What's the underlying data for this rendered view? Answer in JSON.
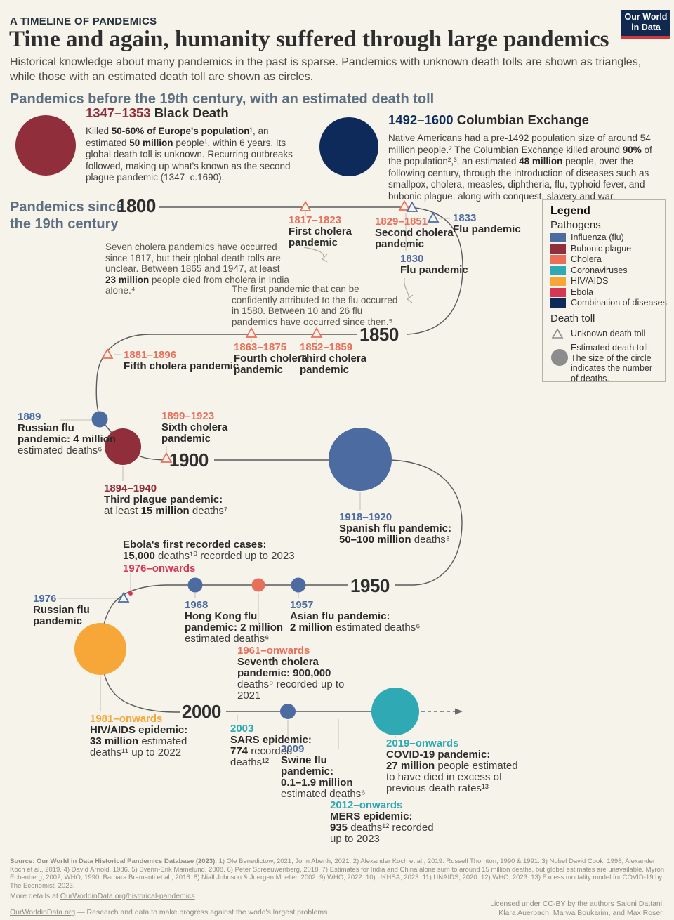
{
  "colors": {
    "flu": "#4c6ba0",
    "bubonic": "#912e3c",
    "cholera": "#e8705a",
    "corona": "#2fa9b4",
    "hiv": "#f7a738",
    "ebola": "#d73753",
    "combo": "#0e2a5a",
    "gray": "#8c8c8c",
    "line": "#5b5b5b",
    "connector": "#c6c2b7",
    "leader": "#b3aea2",
    "dash": "#6b6b6b",
    "heading": "#5d7082",
    "logo_navy": "#12294f",
    "logo_red": "#d0383b",
    "bg": "#f6f3eb"
  },
  "header": {
    "eyebrow": "A TIMELINE OF PANDEMICS",
    "title": "Time and again, humanity suffered through large pandemics",
    "subtitle": "Historical knowledge about many pandemics in the past is sparse. Pandemics with unknown death tolls are shown as triangles, while those with an estimated death toll are shown as circles."
  },
  "logo": {
    "l1": "Our World",
    "l2": "in Data"
  },
  "sections": {
    "pre19": "Pandemics before the 19th century, with an estimated death toll",
    "since19_l1": "Pandemics since",
    "since19_l2": "the 19th century"
  },
  "decades": {
    "d1800": "1800",
    "d1850": "1850",
    "d1900": "1900",
    "d1950": "1950",
    "d2000": "2000"
  },
  "pre": {
    "bd": {
      "date": "1347–1353",
      "name": "Black Death",
      "body": [
        {
          "t": "Killed "
        },
        {
          "t": "50-60% of Europe's population",
          "b": true
        },
        {
          "t": "¹, an estimated "
        },
        {
          "t": "50 million",
          "b": true
        },
        {
          "t": " people¹, within 6 years. Its global death toll is unknown. Recurring outbreaks followed, making up what's known as the second plague pandemic (1347–c.1690)."
        }
      ]
    },
    "ce": {
      "date": "1492–1600",
      "name": "Columbian Exchange",
      "body": [
        {
          "t": "Native Americans had a pre-1492 population size of around 54 million people.² The Columbian Exchange killed around "
        },
        {
          "t": "90%",
          "b": true
        },
        {
          "t": " of the population²,³, an estimated "
        },
        {
          "t": "48 million",
          "b": true
        },
        {
          "t": " people, over the following century, through the introduction of diseases such as smallpox, cholera, measles, diphtheria, flu, typhoid fever, and bubonic plague, along with conquest, slavery and war."
        }
      ]
    }
  },
  "notes": {
    "cholera": [
      {
        "t": "Seven cholera pandemics have occurred since 1817, but their global death tolls are unclear. Between 1865 and 1947, at least "
      },
      {
        "t": "23 million",
        "b": true
      },
      {
        "t": " people died from cholera in India alone.⁴"
      }
    ],
    "flu": [
      {
        "t": "The first pandemic that can be confidently attributed to the flu occurred in 1580. Between 10 and 26 flu pandemics have occurred since then.⁵"
      }
    ]
  },
  "ev": {
    "first_cholera": {
      "d": "1817–1823",
      "l1": "First cholera",
      "l2": "pandemic"
    },
    "second_cholera": {
      "d": "1829–1851",
      "l1": "Second cholera",
      "l2": "pandemic"
    },
    "flu1833": {
      "d": "1833",
      "l1": "Flu pandemic"
    },
    "flu1830": {
      "d": "1830",
      "l1": "Flu pandemic"
    },
    "third_cholera": {
      "d": "1852–1859",
      "l1": "Third cholera",
      "l2": "pandemic"
    },
    "fourth_cholera": {
      "d": "1863–1875",
      "l1": "Fourth cholera",
      "l2": "pandemic"
    },
    "fifth_cholera": {
      "d": "1881–1896",
      "l1": "Fifth cholera pandemic"
    },
    "russian1889": {
      "d": "1889",
      "l1": "Russian flu",
      "l2": "pandemic: 4 million",
      "l3": "estimated deaths⁶"
    },
    "sixth_cholera": {
      "d": "1899–1923",
      "l1": "Sixth cholera",
      "l2": "pandemic"
    },
    "third_plague": {
      "d": "1894–1940",
      "l1": "Third plague pandemic:",
      "r1": [
        {
          "t": "at least "
        },
        {
          "t": "15 million",
          "b": true
        },
        {
          "t": " deaths⁷"
        }
      ]
    },
    "spanish": {
      "d": "1918–1920",
      "l1": "Spanish flu pandemic:",
      "r1": [
        {
          "t": "50–100 million",
          "b": true
        },
        {
          "t": " deaths⁸"
        }
      ]
    },
    "ebola": {
      "l1": "Ebola's first recorded cases:",
      "r1": [
        {
          "t": "15,000",
          "b": true
        },
        {
          "t": " deaths¹⁰ recorded up to 2023"
        }
      ],
      "d": "1976–onwards"
    },
    "russian1976": {
      "d": "1976",
      "l1": "Russian flu",
      "l2": "pandemic"
    },
    "hongkong": {
      "d": "1968",
      "l1": "Hong Kong flu",
      "l2": "pandemic: 2 million",
      "l3": "estimated deaths⁶"
    },
    "asian": {
      "d": "1957",
      "l1": "Asian flu pandemic:",
      "r1": [
        {
          "t": "2 million",
          "b": true
        },
        {
          "t": " estimated deaths⁶"
        }
      ]
    },
    "seventh_cholera": {
      "d": "1961–onwards",
      "l1": "Seventh cholera",
      "l2": "pandemic: 900,000",
      "l3": "deaths⁹ recorded up to",
      "l4": "2021"
    },
    "hiv": {
      "d": "1981–onwards",
      "l1": "HIV/AIDS epidemic:",
      "r1": [
        {
          "t": "33 million",
          "b": true
        },
        {
          "t": " estimated"
        }
      ],
      "l2": "deaths¹¹ up to 2022"
    },
    "sars": {
      "d": "2003",
      "l1": "SARS epidemic:",
      "r1": [
        {
          "t": "774",
          "b": true
        },
        {
          "t": " recorded"
        }
      ],
      "l2": "deaths¹²"
    },
    "swine": {
      "d": "2009",
      "l1": "Swine flu",
      "l2": "pandemic:",
      "l3": "0.1–1.9 million",
      "l4": "estimated deaths⁶"
    },
    "mers": {
      "d": "2012–onwards",
      "l1": "MERS epidemic:",
      "r1": [
        {
          "t": "935",
          "b": true
        },
        {
          "t": " deaths¹² recorded"
        }
      ],
      "l2": "up to 2023"
    },
    "covid": {
      "d": "2019–onwards",
      "l1": "COVID-19 pandemic:",
      "r1": [
        {
          "t": "27 million",
          "b": true
        },
        {
          "t": " people estimated"
        }
      ],
      "l2": "to have died in excess of",
      "l3": "previous death rates¹³"
    }
  },
  "legend": {
    "title": "Legend",
    "pathogens_label": "Pathogens",
    "items": [
      {
        "label": "Influenza (flu)",
        "color": "flu"
      },
      {
        "label": "Bubonic plague",
        "color": "bubonic"
      },
      {
        "label": "Cholera",
        "color": "cholera"
      },
      {
        "label": "Coronaviruses",
        "color": "corona"
      },
      {
        "label": "HIV/AIDS",
        "color": "hiv"
      },
      {
        "label": "Ebola",
        "color": "ebola"
      },
      {
        "label": "Combination of diseases",
        "color": "combo"
      }
    ],
    "death_toll_label": "Death toll",
    "unknown_label": "Unknown death toll",
    "estimated_lines": [
      "Estimated death toll.",
      "The size of the circle",
      "indicates the number",
      "of deaths."
    ]
  },
  "footer": {
    "source": [
      {
        "t": "Source: Our World in Data Historical Pandemics Database (2023).",
        "b": true
      },
      {
        "t": " 1) Ole Benedictow, 2021; John Aberth, 2021. 2) Alexander Koch et al., 2019. Russell Thornton, 1990 & 1991. 3) Nobel David Cook, 1998; Alexander Koch et al., 2019. 4) David Arnold, 1986. 5) Svenn-Erik Mamelund, 2008. 6) Peter Spreeuwenberg, 2018. 7) Estimates for India and China alone sum to around 15 million deaths, but global estimates are unavailable. Myron Echenberg, 2002; WHO, 1990; Barbara Bramanti et al., 2016. 8) Niall Johnson & Juergen Mueller, 2002. 9) WHO, 2022. 10) UKHSA, 2023. 11) UNAIDS, 2020. 12) WHO, 2023. 13) Excess mortality model for COVID-19 by The Economist, 2023."
      }
    ],
    "more_pre": "More details at ",
    "more_link": "OurWorldinData.org/historical-pandemics",
    "tagline_link": "OurWorldinData.org",
    "tagline_rest": " — Research and data to make progress against the world's largest problems.",
    "lic_pre": "Licensed under ",
    "lic_link": "CC-BY",
    "lic_post": " by the authors Saloni Dattani,",
    "lic_line2": "Klara Auerbach, Marwa Boukarim, and Max Roser."
  }
}
